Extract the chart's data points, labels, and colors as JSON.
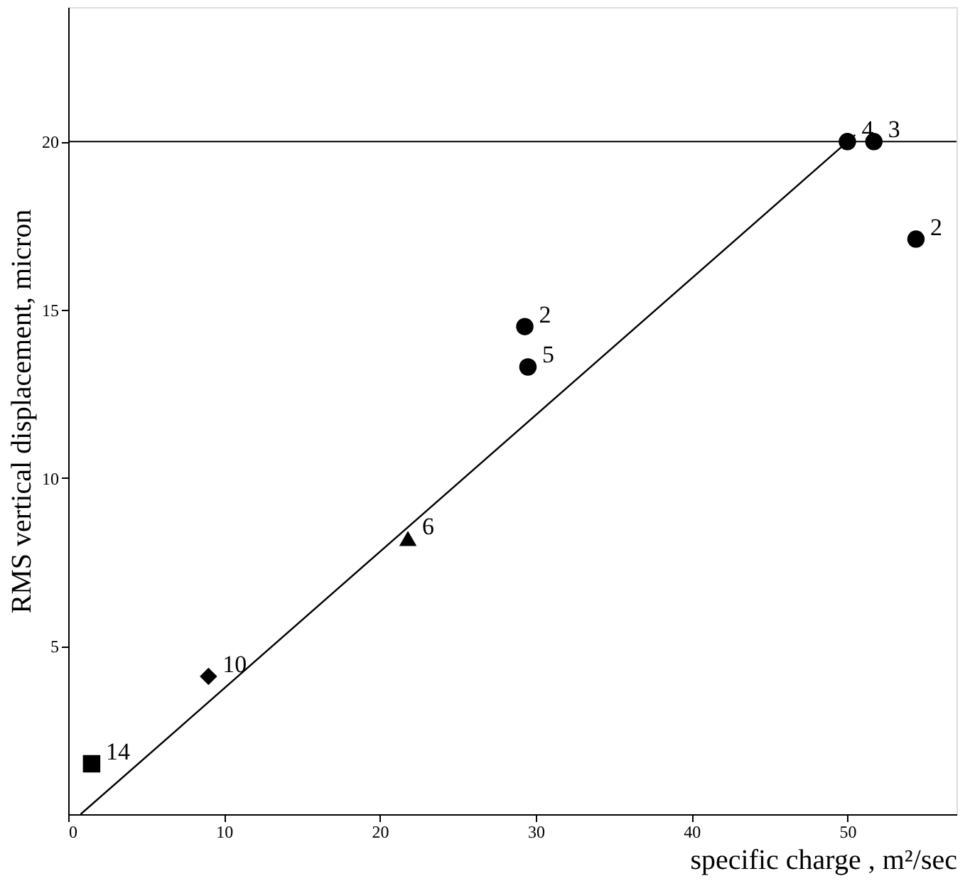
{
  "chart_data": {
    "type": "scatter",
    "xlabel": "specific charge , m²/sec",
    "ylabel": "RMS vertical displacement, micron",
    "xlim": [
      0,
      57
    ],
    "ylim": [
      0,
      24
    ],
    "xticks": [
      0,
      10,
      20,
      30,
      40,
      50
    ],
    "yticks": [
      5,
      10,
      15,
      20
    ],
    "grid": false,
    "series": [
      {
        "type": "line",
        "color": "#000000",
        "x": [
          0.8,
          50.5
        ],
        "values": [
          0,
          20.2
        ]
      },
      {
        "color": "#000000",
        "marker": "square",
        "x": [
          1.5
        ],
        "values": [
          1.5
        ]
      },
      {
        "color": "#000000",
        "marker": "diamond",
        "x": [
          9
        ],
        "values": [
          4.1
        ]
      },
      {
        "color": "#000000",
        "marker": "triangle",
        "x": [
          21.8
        ],
        "values": [
          8.2
        ]
      },
      {
        "color": "#000000",
        "marker": "circle",
        "x": [
          29.3,
          50,
          54.4
        ],
        "values": [
          14.5,
          20,
          17.1
        ]
      },
      {
        "color": "#000000",
        "marker": "circle",
        "x": [
          29.5,
          51.7
        ],
        "values": [
          13.3,
          20
        ]
      }
    ],
    "ref_lines": [
      {
        "axis": "y",
        "value": 20,
        "color": "#000000"
      }
    ],
    "annotations": [
      {
        "text": "14",
        "x": 1.5,
        "y": 1.5
      },
      {
        "text": "10",
        "x": 9,
        "y": 4.1
      },
      {
        "text": "6",
        "x": 21.8,
        "y": 8.2
      },
      {
        "text": "2",
        "x": 29.3,
        "y": 14.5
      },
      {
        "text": "5",
        "x": 29.5,
        "y": 13.3
      },
      {
        "text": "4",
        "x": 50,
        "y": 20
      },
      {
        "text": "3",
        "x": 51.7,
        "y": 20
      },
      {
        "text": "2",
        "x": 54.4,
        "y": 17.1
      }
    ]
  }
}
